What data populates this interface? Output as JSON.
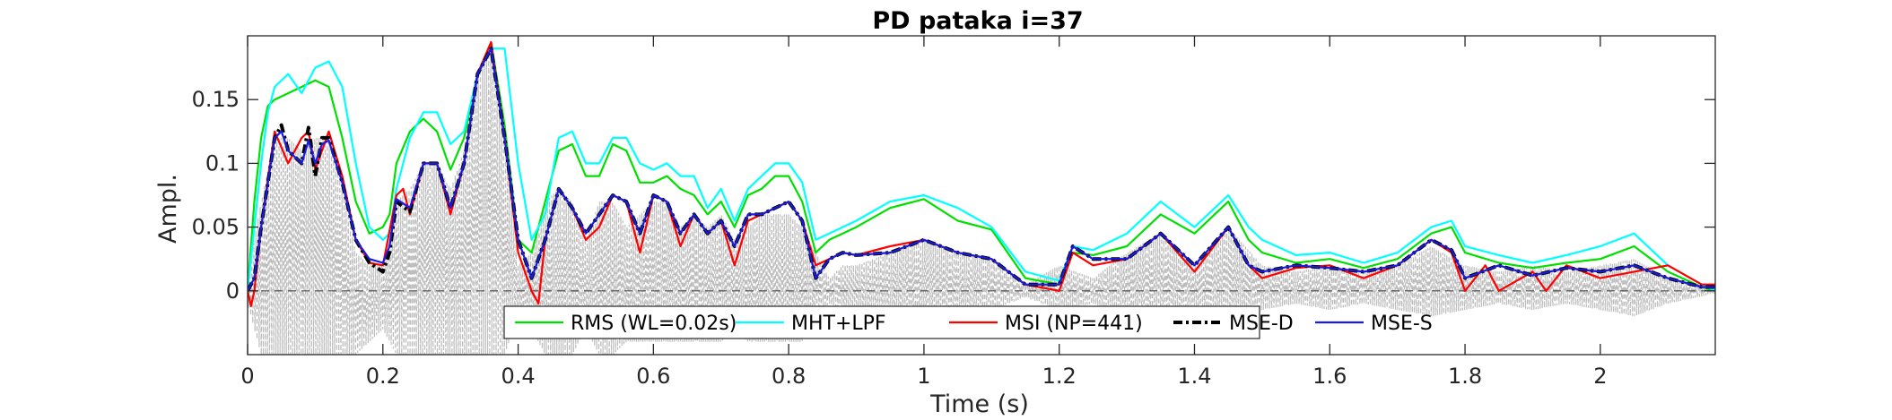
{
  "chart_data": {
    "type": "line",
    "title": "PD pataka i=37",
    "xlabel": "Time (s)",
    "ylabel": "Ampl.",
    "xlim": [
      0,
      2.17
    ],
    "ylim": [
      -0.05,
      0.2
    ],
    "xticks": [
      0,
      0.2,
      0.4,
      0.6,
      0.8,
      1,
      1.2,
      1.4,
      1.6,
      1.8,
      2
    ],
    "xtick_labels": [
      "0",
      "0.2",
      "0.4",
      "0.6",
      "0.8",
      "1",
      "1.2",
      "1.4",
      "1.6",
      "1.8",
      "2"
    ],
    "yticks": [
      0,
      0.05,
      0.1,
      0.15
    ],
    "ytick_labels": [
      "0",
      "0.05",
      "0.1",
      "0.15"
    ],
    "grid": false,
    "legend_position": "bottom-center",
    "legend_orientation": "horizontal",
    "zero_line": {
      "style": "dashed",
      "color": "#444444"
    },
    "signal": {
      "color": "#bdbdbd",
      "style": "dashed",
      "envelope": {
        "x": [
          0,
          0.02,
          0.04,
          0.06,
          0.08,
          0.1,
          0.12,
          0.14,
          0.16,
          0.18,
          0.2,
          0.22,
          0.24,
          0.26,
          0.28,
          0.3,
          0.32,
          0.34,
          0.36,
          0.38,
          0.4,
          0.42,
          0.44,
          0.46,
          0.48,
          0.5,
          0.52,
          0.54,
          0.56,
          0.58,
          0.6,
          0.62,
          0.64,
          0.66,
          0.68,
          0.7,
          0.72,
          0.74,
          0.76,
          0.78,
          0.8,
          0.82,
          0.84,
          0.86,
          0.88,
          0.9,
          0.95,
          1.0,
          1.05,
          1.1,
          1.15,
          1.2,
          1.25,
          1.3,
          1.35,
          1.4,
          1.45,
          1.5,
          1.55,
          1.6,
          1.65,
          1.7,
          1.75,
          1.8,
          1.85,
          1.9,
          1.95,
          2.0,
          2.05,
          2.1,
          2.17
        ],
        "upper": [
          0.01,
          0.07,
          0.12,
          0.12,
          0.11,
          0.12,
          0.12,
          0.08,
          0.03,
          0.02,
          0.02,
          0.07,
          0.08,
          0.1,
          0.1,
          0.08,
          0.11,
          0.17,
          0.19,
          0.12,
          0.02,
          0.03,
          0.07,
          0.08,
          0.07,
          0.04,
          0.07,
          0.07,
          0.05,
          0.06,
          0.07,
          0.07,
          0.05,
          0.06,
          0.05,
          0.06,
          0.04,
          0.05,
          0.06,
          0.06,
          0.06,
          0.05,
          0.03,
          0.01,
          0.02,
          0.02,
          0.03,
          0.04,
          0.03,
          0.025,
          0.005,
          0.02,
          0.01,
          0.03,
          0.045,
          0.02,
          0.05,
          0.02,
          0.015,
          0.02,
          0.015,
          0.02,
          0.035,
          0.02,
          0.015,
          0.02,
          0.015,
          0.02,
          0.025,
          0.01,
          0.002
        ],
        "lower": [
          -0.01,
          -0.05,
          -0.05,
          -0.05,
          -0.05,
          -0.05,
          -0.05,
          -0.05,
          -0.05,
          -0.04,
          -0.03,
          -0.05,
          -0.05,
          -0.05,
          -0.05,
          -0.05,
          -0.05,
          -0.05,
          -0.05,
          -0.05,
          -0.02,
          -0.03,
          -0.05,
          -0.05,
          -0.05,
          -0.03,
          -0.05,
          -0.05,
          -0.04,
          -0.04,
          -0.04,
          -0.04,
          -0.04,
          -0.04,
          -0.04,
          -0.04,
          -0.03,
          -0.04,
          -0.04,
          -0.04,
          -0.04,
          -0.04,
          -0.02,
          -0.01,
          -0.015,
          -0.015,
          -0.02,
          -0.025,
          -0.02,
          -0.015,
          -0.005,
          -0.015,
          -0.01,
          -0.02,
          -0.025,
          -0.015,
          -0.025,
          -0.015,
          -0.01,
          -0.015,
          -0.01,
          -0.015,
          -0.02,
          -0.015,
          -0.01,
          -0.015,
          -0.01,
          -0.015,
          -0.02,
          -0.01,
          -0.002
        ]
      }
    },
    "series": [
      {
        "name": "RMS (WL=0.02s)",
        "color": "#00e000",
        "style": "solid",
        "x": [
          0,
          0.01,
          0.02,
          0.03,
          0.04,
          0.06,
          0.08,
          0.1,
          0.12,
          0.14,
          0.16,
          0.18,
          0.2,
          0.21,
          0.22,
          0.24,
          0.26,
          0.28,
          0.3,
          0.32,
          0.34,
          0.36,
          0.38,
          0.4,
          0.42,
          0.44,
          0.46,
          0.48,
          0.5,
          0.52,
          0.54,
          0.56,
          0.58,
          0.6,
          0.62,
          0.64,
          0.66,
          0.68,
          0.7,
          0.72,
          0.74,
          0.76,
          0.78,
          0.8,
          0.82,
          0.84,
          0.86,
          0.88,
          0.9,
          0.95,
          1.0,
          1.05,
          1.1,
          1.15,
          1.2,
          1.22,
          1.25,
          1.3,
          1.35,
          1.4,
          1.45,
          1.48,
          1.5,
          1.55,
          1.6,
          1.65,
          1.7,
          1.75,
          1.78,
          1.8,
          1.85,
          1.9,
          1.95,
          2.0,
          2.05,
          2.1,
          2.15,
          2.17
        ],
        "y": [
          0,
          0.07,
          0.12,
          0.145,
          0.15,
          0.155,
          0.16,
          0.165,
          0.16,
          0.12,
          0.07,
          0.045,
          0.05,
          0.06,
          0.1,
          0.125,
          0.135,
          0.125,
          0.095,
          0.12,
          0.17,
          0.195,
          0.13,
          0.04,
          0.03,
          0.07,
          0.11,
          0.115,
          0.09,
          0.09,
          0.115,
          0.11,
          0.085,
          0.085,
          0.09,
          0.08,
          0.075,
          0.06,
          0.07,
          0.05,
          0.075,
          0.08,
          0.09,
          0.09,
          0.07,
          0.03,
          0.04,
          0.045,
          0.05,
          0.065,
          0.072,
          0.055,
          0.048,
          0.01,
          0.005,
          0.03,
          0.028,
          0.035,
          0.06,
          0.045,
          0.07,
          0.04,
          0.03,
          0.022,
          0.025,
          0.018,
          0.025,
          0.045,
          0.05,
          0.03,
          0.022,
          0.018,
          0.022,
          0.025,
          0.035,
          0.015,
          0.003,
          0.0
        ]
      },
      {
        "name": "MHT+LPF",
        "color": "#00ffff",
        "style": "solid",
        "x": [
          0,
          0.01,
          0.02,
          0.03,
          0.04,
          0.06,
          0.08,
          0.1,
          0.12,
          0.14,
          0.16,
          0.18,
          0.2,
          0.21,
          0.22,
          0.24,
          0.26,
          0.28,
          0.3,
          0.32,
          0.34,
          0.36,
          0.38,
          0.4,
          0.42,
          0.44,
          0.46,
          0.48,
          0.5,
          0.52,
          0.54,
          0.56,
          0.58,
          0.6,
          0.62,
          0.64,
          0.66,
          0.68,
          0.7,
          0.72,
          0.74,
          0.76,
          0.78,
          0.8,
          0.82,
          0.84,
          0.86,
          0.88,
          0.9,
          0.95,
          1.0,
          1.05,
          1.1,
          1.15,
          1.2,
          1.22,
          1.25,
          1.3,
          1.35,
          1.4,
          1.45,
          1.48,
          1.5,
          1.55,
          1.6,
          1.65,
          1.7,
          1.75,
          1.78,
          1.8,
          1.85,
          1.9,
          1.95,
          2.0,
          2.05,
          2.1,
          2.15,
          2.17
        ],
        "y": [
          0,
          0.05,
          0.1,
          0.14,
          0.16,
          0.17,
          0.155,
          0.175,
          0.18,
          0.16,
          0.1,
          0.05,
          0.04,
          0.045,
          0.08,
          0.12,
          0.14,
          0.14,
          0.115,
          0.125,
          0.17,
          0.19,
          0.19,
          0.1,
          0.04,
          0.06,
          0.12,
          0.125,
          0.1,
          0.1,
          0.12,
          0.12,
          0.1,
          0.095,
          0.1,
          0.09,
          0.09,
          0.065,
          0.08,
          0.055,
          0.08,
          0.09,
          0.1,
          0.1,
          0.085,
          0.04,
          0.045,
          0.05,
          0.055,
          0.07,
          0.075,
          0.065,
          0.05,
          0.015,
          0.008,
          0.035,
          0.032,
          0.045,
          0.07,
          0.05,
          0.075,
          0.05,
          0.04,
          0.028,
          0.03,
          0.022,
          0.03,
          0.05,
          0.055,
          0.035,
          0.028,
          0.022,
          0.028,
          0.035,
          0.045,
          0.02,
          0.005,
          0.0
        ]
      },
      {
        "name": "MSI (NP=441)",
        "color": "#ff0000",
        "style": "solid",
        "x": [
          0,
          0.005,
          0.01,
          0.02,
          0.04,
          0.06,
          0.08,
          0.09,
          0.1,
          0.12,
          0.14,
          0.16,
          0.18,
          0.2,
          0.22,
          0.23,
          0.24,
          0.26,
          0.28,
          0.3,
          0.32,
          0.34,
          0.36,
          0.38,
          0.4,
          0.42,
          0.43,
          0.44,
          0.46,
          0.48,
          0.5,
          0.52,
          0.54,
          0.56,
          0.58,
          0.6,
          0.62,
          0.64,
          0.66,
          0.68,
          0.7,
          0.72,
          0.74,
          0.76,
          0.78,
          0.8,
          0.82,
          0.84,
          0.86,
          0.88,
          0.9,
          0.95,
          1.0,
          1.05,
          1.1,
          1.15,
          1.2,
          1.22,
          1.25,
          1.3,
          1.35,
          1.4,
          1.45,
          1.48,
          1.5,
          1.55,
          1.6,
          1.65,
          1.7,
          1.75,
          1.78,
          1.8,
          1.83,
          1.85,
          1.9,
          1.92,
          1.95,
          2.0,
          2.05,
          2.1,
          2.15,
          2.17
        ],
        "y": [
          0,
          -0.012,
          0.0,
          0.05,
          0.125,
          0.1,
          0.12,
          0.125,
          0.095,
          0.125,
          0.09,
          0.04,
          0.022,
          0.02,
          0.075,
          0.08,
          0.06,
          0.1,
          0.1,
          0.06,
          0.1,
          0.17,
          0.195,
          0.12,
          0.03,
          0.0,
          -0.01,
          0.04,
          0.08,
          0.065,
          0.04,
          0.05,
          0.075,
          0.07,
          0.03,
          0.075,
          0.07,
          0.035,
          0.06,
          0.045,
          0.055,
          0.02,
          0.055,
          0.06,
          0.065,
          0.07,
          0.055,
          0.02,
          0.025,
          0.03,
          0.028,
          0.035,
          0.04,
          0.03,
          0.025,
          0.005,
          0.0,
          0.03,
          0.02,
          0.025,
          0.045,
          0.015,
          0.05,
          0.02,
          0.01,
          0.018,
          0.02,
          0.01,
          0.02,
          0.04,
          0.03,
          0.0,
          0.02,
          0.0,
          0.015,
          0.0,
          0.02,
          0.01,
          0.015,
          0.02,
          0.005,
          0.005
        ]
      },
      {
        "name": "MSE-D",
        "color": "#000000",
        "style": "dashdot",
        "x": [
          0,
          0.01,
          0.02,
          0.04,
          0.05,
          0.06,
          0.08,
          0.09,
          0.1,
          0.11,
          0.12,
          0.14,
          0.16,
          0.18,
          0.2,
          0.21,
          0.22,
          0.24,
          0.26,
          0.28,
          0.3,
          0.32,
          0.34,
          0.36,
          0.38,
          0.4,
          0.42,
          0.44,
          0.46,
          0.48,
          0.5,
          0.52,
          0.54,
          0.56,
          0.58,
          0.6,
          0.62,
          0.64,
          0.66,
          0.68,
          0.7,
          0.72,
          0.74,
          0.76,
          0.78,
          0.8,
          0.82,
          0.84,
          0.86,
          0.88,
          0.9,
          0.95,
          1.0,
          1.05,
          1.1,
          1.15,
          1.2,
          1.22,
          1.25,
          1.3,
          1.35,
          1.4,
          1.45,
          1.48,
          1.5,
          1.55,
          1.6,
          1.65,
          1.7,
          1.75,
          1.78,
          1.8,
          1.85,
          1.9,
          1.95,
          2.0,
          2.05,
          2.1,
          2.15,
          2.17
        ],
        "y": [
          0,
          0.01,
          0.05,
          0.12,
          0.13,
          0.11,
          0.1,
          0.128,
          0.09,
          0.12,
          0.12,
          0.085,
          0.04,
          0.022,
          0.015,
          0.03,
          0.07,
          0.062,
          0.1,
          0.1,
          0.065,
          0.1,
          0.17,
          0.19,
          0.12,
          0.04,
          0.01,
          0.04,
          0.08,
          0.065,
          0.045,
          0.06,
          0.075,
          0.07,
          0.045,
          0.075,
          0.07,
          0.045,
          0.06,
          0.045,
          0.055,
          0.035,
          0.06,
          0.06,
          0.065,
          0.07,
          0.055,
          0.01,
          0.025,
          0.03,
          0.028,
          0.03,
          0.04,
          0.03,
          0.025,
          0.005,
          0.005,
          0.035,
          0.025,
          0.025,
          0.045,
          0.02,
          0.05,
          0.02,
          0.015,
          0.02,
          0.018,
          0.015,
          0.02,
          0.04,
          0.032,
          0.01,
          0.02,
          0.012,
          0.018,
          0.015,
          0.02,
          0.01,
          0.003,
          0.003
        ]
      },
      {
        "name": "MSE-S",
        "color": "#1a1ae0",
        "style": "solid",
        "x": [
          0,
          0.01,
          0.02,
          0.04,
          0.05,
          0.06,
          0.08,
          0.09,
          0.1,
          0.11,
          0.12,
          0.14,
          0.16,
          0.18,
          0.2,
          0.21,
          0.22,
          0.24,
          0.26,
          0.28,
          0.3,
          0.32,
          0.34,
          0.36,
          0.38,
          0.4,
          0.42,
          0.44,
          0.46,
          0.48,
          0.5,
          0.52,
          0.54,
          0.56,
          0.58,
          0.6,
          0.62,
          0.64,
          0.66,
          0.68,
          0.7,
          0.72,
          0.74,
          0.76,
          0.78,
          0.8,
          0.82,
          0.84,
          0.86,
          0.88,
          0.9,
          0.95,
          1.0,
          1.05,
          1.1,
          1.15,
          1.2,
          1.22,
          1.25,
          1.3,
          1.35,
          1.4,
          1.45,
          1.48,
          1.5,
          1.55,
          1.6,
          1.65,
          1.7,
          1.75,
          1.78,
          1.8,
          1.85,
          1.9,
          1.95,
          2.0,
          2.05,
          2.1,
          2.15,
          2.17
        ],
        "y": [
          0,
          0.01,
          0.05,
          0.12,
          0.125,
          0.11,
          0.1,
          0.118,
          0.1,
          0.115,
          0.118,
          0.085,
          0.04,
          0.025,
          0.022,
          0.035,
          0.072,
          0.065,
          0.1,
          0.1,
          0.065,
          0.1,
          0.17,
          0.19,
          0.12,
          0.04,
          0.01,
          0.04,
          0.08,
          0.065,
          0.045,
          0.06,
          0.075,
          0.07,
          0.045,
          0.075,
          0.07,
          0.045,
          0.06,
          0.045,
          0.055,
          0.035,
          0.06,
          0.06,
          0.065,
          0.07,
          0.055,
          0.01,
          0.025,
          0.03,
          0.028,
          0.03,
          0.04,
          0.03,
          0.025,
          0.005,
          0.005,
          0.035,
          0.025,
          0.025,
          0.045,
          0.02,
          0.05,
          0.02,
          0.015,
          0.02,
          0.018,
          0.015,
          0.02,
          0.04,
          0.032,
          0.01,
          0.02,
          0.012,
          0.018,
          0.015,
          0.02,
          0.01,
          0.003,
          0.003
        ]
      }
    ]
  }
}
